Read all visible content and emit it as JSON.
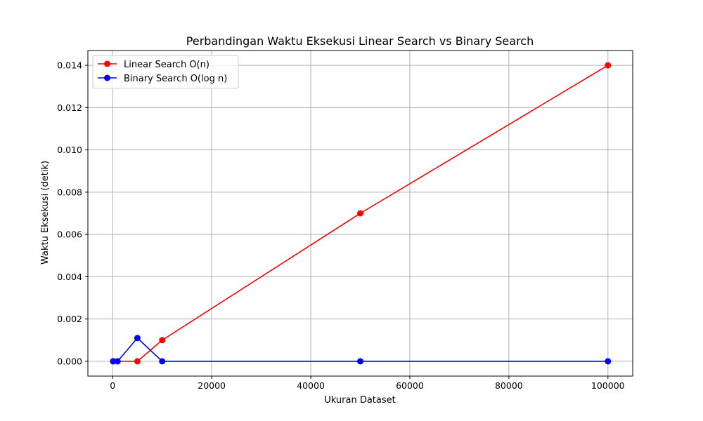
{
  "chart_data": {
    "type": "line",
    "title": "Perbandingan Waktu Eksekusi Linear Search vs Binary Search",
    "xlabel": "Ukuran Dataset",
    "ylabel": "Waktu Eksekusi (detik)",
    "xlim": [
      -5000,
      105000
    ],
    "ylim": [
      -0.0007,
      0.0147
    ],
    "x_ticks": [
      0,
      20000,
      40000,
      60000,
      80000,
      100000
    ],
    "x_tick_labels": [
      "0",
      "20000",
      "40000",
      "60000",
      "80000",
      "100000"
    ],
    "y_ticks": [
      0.0,
      0.002,
      0.004,
      0.006,
      0.008,
      0.01,
      0.012,
      0.014
    ],
    "y_tick_labels": [
      "0.000",
      "0.002",
      "0.004",
      "0.006",
      "0.008",
      "0.010",
      "0.012",
      "0.014"
    ],
    "grid": true,
    "legend_position": "top-left",
    "series": [
      {
        "name": "Linear Search O(n)",
        "color": "#ff0000",
        "marker": "circle",
        "x": [
          100,
          1000,
          5000,
          10000,
          50000,
          100000
        ],
        "y": [
          0.0,
          0.0,
          0.0,
          0.001,
          0.007,
          0.014
        ]
      },
      {
        "name": "Binary Search O(log n)",
        "color": "#0000ff",
        "marker": "circle",
        "x": [
          100,
          1000,
          5000,
          10000,
          50000,
          100000
        ],
        "y": [
          0.0,
          0.0,
          0.0011,
          0.0,
          0.0,
          0.0
        ]
      }
    ]
  }
}
